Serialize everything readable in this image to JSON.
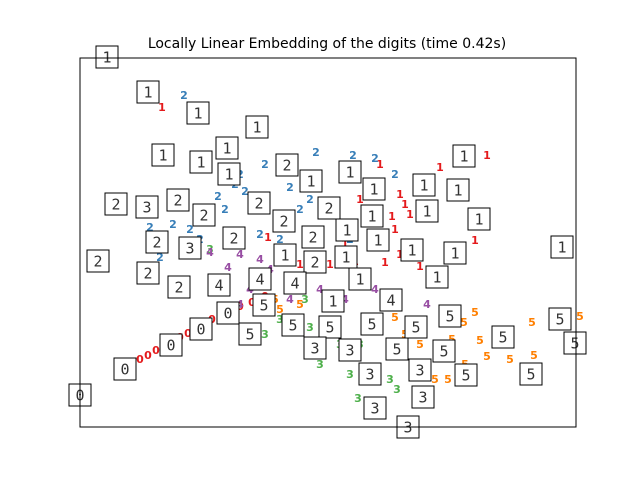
{
  "chart_data": {
    "type": "scatter",
    "title": "Locally Linear Embedding of the digits (time 0.42s)",
    "xlim": [
      0,
      496
    ],
    "ylim": [
      0,
      369
    ],
    "series": [
      {
        "name": "0",
        "color": "#e41a1c",
        "x": [
          60,
          68,
          76,
          84,
          92,
          100,
          108,
          116,
          124,
          132,
          140,
          150,
          160,
          172,
          185
        ],
        "values": [
          67,
          71,
          76,
          80,
          85,
          89,
          93,
          98,
          102,
          107,
          111,
          116,
          120,
          124,
          130
        ]
      },
      {
        "name": "1",
        "color": "#e41a1c",
        "x": [
          82,
          300,
          360,
          407,
          395,
          340,
          320,
          305,
          325,
          320,
          312,
          330,
          280,
          265,
          250,
          188,
          220,
          275,
          315
        ],
        "values": [
          319,
          262,
          259,
          271,
          186,
          160,
          172,
          164,
          222,
          232,
          210,
          212,
          227,
          182,
          162,
          189,
          162,
          165,
          197
        ]
      },
      {
        "name": "2",
        "color": "#377eb8",
        "x": [
          104,
          236,
          273,
          295,
          160,
          185,
          210,
          138,
          70,
          93,
          120,
          80,
          165,
          220,
          145,
          315,
          180,
          200,
          230,
          270,
          110,
          155
        ],
        "values": [
          331,
          274,
          271,
          268,
          252,
          262,
          239,
          230,
          199,
          202,
          187,
          169,
          235,
          217,
          217,
          252,
          192,
          187,
          227,
          187,
          197,
          242
        ]
      },
      {
        "name": "3",
        "color": "#4daf4a",
        "x": [
          230,
          240,
          270,
          310,
          278,
          317,
          260,
          170,
          130,
          185,
          200,
          280,
          250,
          225
        ],
        "values": [
          99,
          62,
          52,
          47,
          28,
          37,
          82,
          90,
          177,
          92,
          107,
          82,
          97,
          127
        ]
      },
      {
        "name": "4",
        "color": "#984ea3",
        "x": [
          130,
          148,
          160,
          160,
          190,
          210,
          240,
          265,
          295,
          347,
          170,
          220,
          230,
          180
        ],
        "values": [
          174,
          159,
          172,
          122,
          157,
          127,
          137,
          127,
          137,
          122,
          137,
          147,
          157,
          167
        ]
      },
      {
        "name": "5",
        "color": "#ff7f00",
        "x": [
          500,
          452,
          454,
          430,
          407,
          400,
          384,
          395,
          355,
          368,
          385,
          315,
          325,
          340,
          220,
          200,
          195,
          290,
          372
        ],
        "values": [
          110,
          104,
          71,
          67,
          70,
          86,
          104,
          114,
          47,
          47,
          62,
          109,
          92,
          82,
          122,
          117,
          127,
          107,
          87
        ]
      }
    ],
    "images": [
      {
        "x": 27,
        "y": 370,
        "digit": 1
      },
      {
        "x": 68,
        "y": 335,
        "digit": 1
      },
      {
        "x": 118,
        "y": 314,
        "digit": 1
      },
      {
        "x": 177,
        "y": 300,
        "digit": 1
      },
      {
        "x": 147,
        "y": 279,
        "digit": 1
      },
      {
        "x": 83,
        "y": 272,
        "digit": 1
      },
      {
        "x": 121,
        "y": 265,
        "digit": 1
      },
      {
        "x": 149,
        "y": 253,
        "digit": 1
      },
      {
        "x": 207,
        "y": 262,
        "digit": 2
      },
      {
        "x": 231,
        "y": 246,
        "digit": 1
      },
      {
        "x": 270,
        "y": 255,
        "digit": 1
      },
      {
        "x": 384,
        "y": 271,
        "digit": 1
      },
      {
        "x": 344,
        "y": 242,
        "digit": 1
      },
      {
        "x": 378,
        "y": 237,
        "digit": 1
      },
      {
        "x": 294,
        "y": 238,
        "digit": 1
      },
      {
        "x": 249,
        "y": 219,
        "digit": 2
      },
      {
        "x": 36,
        "y": 223,
        "digit": 2
      },
      {
        "x": 67,
        "y": 220,
        "digit": 3
      },
      {
        "x": 98,
        "y": 227,
        "digit": 2
      },
      {
        "x": 124,
        "y": 212,
        "digit": 2
      },
      {
        "x": 179,
        "y": 224,
        "digit": 2
      },
      {
        "x": 204,
        "y": 206,
        "digit": 2
      },
      {
        "x": 292,
        "y": 211,
        "digit": 1
      },
      {
        "x": 347,
        "y": 216,
        "digit": 1
      },
      {
        "x": 399,
        "y": 208,
        "digit": 1
      },
      {
        "x": 267,
        "y": 197,
        "digit": 1
      },
      {
        "x": 233,
        "y": 190,
        "digit": 2
      },
      {
        "x": 298,
        "y": 187,
        "digit": 1
      },
      {
        "x": 154,
        "y": 189,
        "digit": 2
      },
      {
        "x": 77,
        "y": 185,
        "digit": 2
      },
      {
        "x": 110,
        "y": 179,
        "digit": 3
      },
      {
        "x": 18,
        "y": 166,
        "digit": 2
      },
      {
        "x": 205,
        "y": 172,
        "digit": 1
      },
      {
        "x": 235,
        "y": 165,
        "digit": 2
      },
      {
        "x": 266,
        "y": 170,
        "digit": 1
      },
      {
        "x": 332,
        "y": 177,
        "digit": 1
      },
      {
        "x": 375,
        "y": 174,
        "digit": 1
      },
      {
        "x": 482,
        "y": 180,
        "digit": 1
      },
      {
        "x": 68,
        "y": 154,
        "digit": 2
      },
      {
        "x": 99,
        "y": 140,
        "digit": 2
      },
      {
        "x": 139,
        "y": 142,
        "digit": 4
      },
      {
        "x": 180,
        "y": 148,
        "digit": 4
      },
      {
        "x": 215,
        "y": 144,
        "digit": 4
      },
      {
        "x": 280,
        "y": 148,
        "digit": 1
      },
      {
        "x": 357,
        "y": 150,
        "digit": 1
      },
      {
        "x": 253,
        "y": 126,
        "digit": 1
      },
      {
        "x": 311,
        "y": 127,
        "digit": 4
      },
      {
        "x": 184,
        "y": 122,
        "digit": 5
      },
      {
        "x": 148,
        "y": 114,
        "digit": 0
      },
      {
        "x": 121,
        "y": 98,
        "digit": 0
      },
      {
        "x": 170,
        "y": 93,
        "digit": 5
      },
      {
        "x": 213,
        "y": 102,
        "digit": 5
      },
      {
        "x": 250,
        "y": 100,
        "digit": 5
      },
      {
        "x": 292,
        "y": 103,
        "digit": 5
      },
      {
        "x": 336,
        "y": 100,
        "digit": 5
      },
      {
        "x": 370,
        "y": 111,
        "digit": 5
      },
      {
        "x": 480,
        "y": 108,
        "digit": 5
      },
      {
        "x": 495,
        "y": 84,
        "digit": 5
      },
      {
        "x": 423,
        "y": 90,
        "digit": 5
      },
      {
        "x": 91,
        "y": 82,
        "digit": 0
      },
      {
        "x": 45,
        "y": 58,
        "digit": 0
      },
      {
        "x": 0,
        "y": 32,
        "digit": 0
      },
      {
        "x": 235,
        "y": 79,
        "digit": 3
      },
      {
        "x": 270,
        "y": 77,
        "digit": 3
      },
      {
        "x": 317,
        "y": 78,
        "digit": 5
      },
      {
        "x": 364,
        "y": 76,
        "digit": 5
      },
      {
        "x": 340,
        "y": 57,
        "digit": 3
      },
      {
        "x": 290,
        "y": 53,
        "digit": 3
      },
      {
        "x": 386,
        "y": 52,
        "digit": 5
      },
      {
        "x": 451,
        "y": 53,
        "digit": 5
      },
      {
        "x": 343,
        "y": 30,
        "digit": 3
      },
      {
        "x": 295,
        "y": 19,
        "digit": 3
      },
      {
        "x": 328,
        "y": 0,
        "digit": 3
      }
    ]
  }
}
